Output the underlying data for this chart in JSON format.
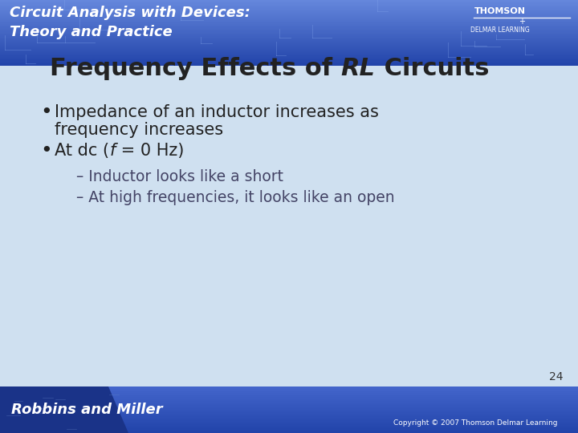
{
  "title_normal": "Frequency Effects of ",
  "title_italic": "RL",
  "title_normal2": " Circuits",
  "bullet1_line1": "Impedance of an inductor increases as",
  "bullet1_line2": "frequency increases",
  "bullet2_part1": "At dc (",
  "bullet2_italic": "f",
  "bullet2_part2": " = 0 Hz)",
  "sub1": "– Inductor looks like a short",
  "sub2": "– At high frequencies, it looks like an open",
  "page_number": "24",
  "header_text1": "Circuit Analysis with Devices:",
  "header_text2": "Theory and Practice",
  "header_right1": "THOMSON",
  "header_right2": "DELMAR LEARNING",
  "footer_left": "Robbins and Miller",
  "footer_right": "Copyright © 2007 Thomson Delmar Learning",
  "bg_main": "#cfe0f0",
  "header_color_top": "#2244aa",
  "header_color_bot": "#5577cc",
  "footer_color": "#2244aa",
  "title_color": "#222222",
  "bullet_color": "#222222",
  "sub_color": "#444466",
  "header_fg": "#ffffff",
  "page_num_color": "#333333"
}
